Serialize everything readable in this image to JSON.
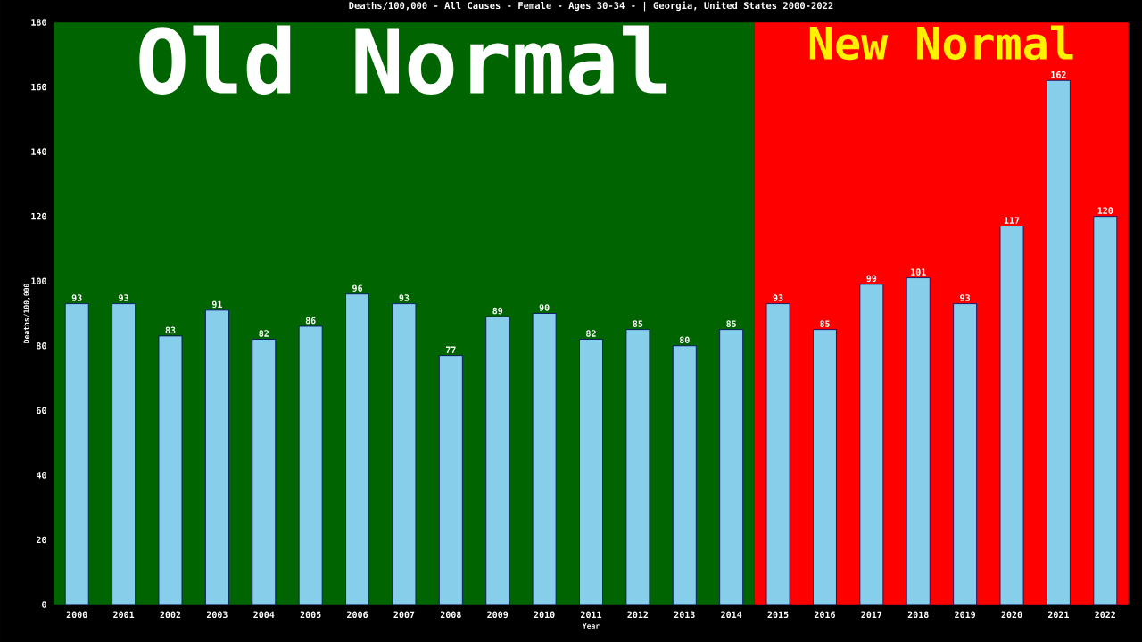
{
  "chart_data": {
    "type": "bar",
    "title": "Deaths/100,000 - All Causes - Female - Ages 30-34 -  | Georgia, United States 2000-2022",
    "xlabel": "Year",
    "ylabel": "Deaths/100,000",
    "categories": [
      "2000",
      "2001",
      "2002",
      "2003",
      "2004",
      "2005",
      "2006",
      "2007",
      "2008",
      "2009",
      "2010",
      "2011",
      "2012",
      "2013",
      "2014",
      "2015",
      "2016",
      "2017",
      "2018",
      "2019",
      "2020",
      "2021",
      "2022"
    ],
    "values": [
      93,
      93,
      83,
      91,
      82,
      86,
      96,
      93,
      77,
      89,
      90,
      82,
      85,
      80,
      85,
      93,
      85,
      99,
      101,
      93,
      117,
      162,
      120
    ],
    "color": "#87ceeb",
    "data_labels": true,
    "ylim": [
      0,
      180
    ],
    "yticks": [
      0,
      20,
      40,
      60,
      80,
      100,
      120,
      140,
      160,
      180
    ],
    "bands": [
      {
        "axis": "x",
        "from": "2000",
        "to": "2014",
        "label": "Old Normal",
        "color": "#006400"
      },
      {
        "axis": "x",
        "from": "2015",
        "to": "2022",
        "label": "New Normal",
        "color": "#ff0000"
      }
    ]
  }
}
